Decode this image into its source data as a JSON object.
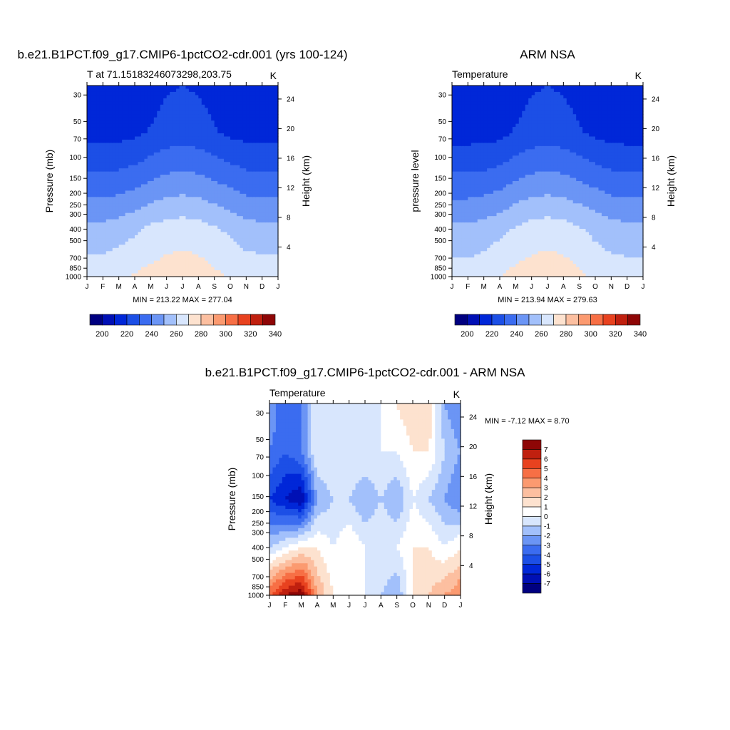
{
  "page": {
    "background": "#ffffff"
  },
  "chart_data": [
    {
      "type": "heatmap",
      "title": "b.e21.B1PCT.f09_g17.CMIP6-1pctCO2-cdr.001 (yrs 100-124)",
      "subtitle_left": "T at 71.15183246073298,203.75",
      "subtitle_right": "K",
      "ylabel": "Pressure (mb)",
      "y2label": "Height (km)",
      "x_tick_labels": [
        "J",
        "F",
        "M",
        "A",
        "M",
        "J",
        "J",
        "A",
        "S",
        "O",
        "N",
        "D",
        "J"
      ],
      "y_ticks": [
        30,
        50,
        70,
        100,
        150,
        200,
        250,
        300,
        400,
        500,
        700,
        850,
        1000
      ],
      "y_log": true,
      "ylim": [
        1000,
        25
      ],
      "y2_ticks": [
        4,
        8,
        12,
        16,
        20,
        24
      ],
      "stats_label": "MIN = 213.22 MAX = 277.04",
      "min": 213.22,
      "max": 277.04,
      "z_fill": [
        [
          216,
          222,
          238,
          258,
          272
        ],
        [
          216,
          222,
          238,
          258,
          271
        ],
        [
          215,
          222,
          239,
          260,
          273
        ],
        [
          216,
          223,
          241,
          263,
          276
        ],
        [
          220,
          226,
          245,
          267,
          278
        ],
        [
          224,
          229,
          248,
          269,
          280
        ],
        [
          225,
          230,
          249,
          270,
          281
        ],
        [
          224,
          229,
          248,
          269,
          280
        ],
        [
          221,
          226,
          245,
          266,
          277
        ],
        [
          218,
          223,
          242,
          263,
          274
        ],
        [
          216,
          222,
          239,
          259,
          272
        ],
        [
          215,
          221,
          238,
          258,
          271
        ],
        [
          216,
          222,
          238,
          258,
          272
        ]
      ],
      "colorbar": {
        "levels": [
          "200",
          "220",
          "240",
          "260",
          "280",
          "300",
          "320",
          "340"
        ],
        "colors": [
          "#000080",
          "#0010b5",
          "#0027d8",
          "#1c4fe6",
          "#3b6cf0",
          "#6b95f5",
          "#a2c0fb",
          "#d8e6fd",
          "#fde2cf",
          "#fcbfa0",
          "#fb9a70",
          "#f76f45",
          "#e8421f",
          "#c0200f",
          "#8e0606"
        ]
      }
    },
    {
      "type": "heatmap",
      "title": "ARM NSA",
      "subtitle_left": "Temperature",
      "subtitle_right": "K",
      "ylabel": "pressure level",
      "y2label": "Height (km)",
      "x_tick_labels": [
        "J",
        "F",
        "M",
        "A",
        "M",
        "J",
        "J",
        "A",
        "S",
        "O",
        "N",
        "D",
        "J"
      ],
      "y_ticks": [
        30,
        50,
        70,
        100,
        150,
        200,
        250,
        300,
        400,
        500,
        700,
        850,
        1000
      ],
      "y_log": true,
      "ylim": [
        1000,
        25
      ],
      "y2_ticks": [
        4,
        8,
        12,
        16,
        20,
        24
      ],
      "stats_label": "MIN = 213.94 MAX = 279.63",
      "min": 213.94,
      "max": 279.63,
      "z_fill": [
        [
          216,
          221,
          238,
          257,
          271
        ],
        [
          215,
          221,
          238,
          257,
          270
        ],
        [
          215,
          221,
          239,
          259,
          272
        ],
        [
          216,
          222,
          241,
          262,
          275
        ],
        [
          220,
          226,
          245,
          266,
          278
        ],
        [
          224,
          229,
          248,
          269,
          280
        ],
        [
          225,
          230,
          249,
          270,
          281
        ],
        [
          224,
          229,
          248,
          269,
          280
        ],
        [
          221,
          226,
          245,
          266,
          277
        ],
        [
          218,
          223,
          242,
          262,
          273
        ],
        [
          216,
          221,
          239,
          259,
          271
        ],
        [
          215,
          221,
          238,
          258,
          270
        ],
        [
          216,
          221,
          238,
          257,
          271
        ]
      ],
      "colorbar": {
        "levels": [
          "200",
          "220",
          "240",
          "260",
          "280",
          "300",
          "320",
          "340"
        ],
        "colors": [
          "#000080",
          "#0010b5",
          "#0027d8",
          "#1c4fe6",
          "#3b6cf0",
          "#6b95f5",
          "#a2c0fb",
          "#d8e6fd",
          "#fde2cf",
          "#fcbfa0",
          "#fb9a70",
          "#f76f45",
          "#e8421f",
          "#c0200f",
          "#8e0606"
        ]
      }
    },
    {
      "type": "heatmap",
      "title": "b.e21.B1PCT.f09_g17.CMIP6-1pctCO2-cdr.001 - ARM NSA",
      "subtitle_left": "Temperature",
      "subtitle_right": "K",
      "ylabel": "Pressure (mb)",
      "y2label": "Height (km)",
      "x_tick_labels": [
        "J",
        "F",
        "M",
        "A",
        "M",
        "J",
        "J",
        "A",
        "S",
        "O",
        "N",
        "D",
        "J"
      ],
      "y_ticks": [
        30,
        50,
        70,
        100,
        150,
        200,
        250,
        300,
        400,
        500,
        700,
        850,
        1000
      ],
      "y_log": true,
      "ylim": [
        1000,
        25
      ],
      "y2_ticks": [
        4,
        8,
        12,
        16,
        20,
        24
      ],
      "stats_label": "MIN =  -7.12 MAX =   8.70",
      "min": -7.12,
      "max": 8.7,
      "z_fill": [
        [
          -2,
          -3,
          -5,
          -1,
          5
        ],
        [
          -4,
          -4,
          -6,
          0,
          7
        ],
        [
          -3,
          -3,
          -7,
          1,
          8
        ],
        [
          0,
          0,
          -2,
          1,
          3
        ],
        [
          0,
          0,
          -1,
          0,
          1
        ],
        [
          -1,
          0,
          -1,
          1,
          1
        ],
        [
          0,
          0,
          -2,
          0,
          0
        ],
        [
          0,
          0,
          -1,
          0,
          -1
        ],
        [
          1,
          0,
          -2,
          0,
          -2
        ],
        [
          2,
          1,
          0,
          1,
          1
        ],
        [
          2,
          1,
          -1,
          1,
          2
        ],
        [
          -2,
          -1,
          -2,
          0,
          3
        ],
        [
          -3,
          -2,
          -3,
          1,
          4
        ]
      ],
      "colorbar": {
        "levels": [
          "7",
          "6",
          "5",
          "4",
          "3",
          "2",
          "1",
          "0",
          "-1",
          "-2",
          "-3",
          "-4",
          "-5",
          "-6",
          "-7"
        ],
        "colors": [
          "#8e0606",
          "#c0200f",
          "#e8421f",
          "#f76f45",
          "#fb9a70",
          "#fcbfa0",
          "#fde2cf",
          "#ffffff",
          "#d8e6fd",
          "#a2c0fb",
          "#6b95f5",
          "#3b6cf0",
          "#1c4fe6",
          "#0027d8",
          "#0010b5",
          "#000080"
        ]
      }
    }
  ]
}
